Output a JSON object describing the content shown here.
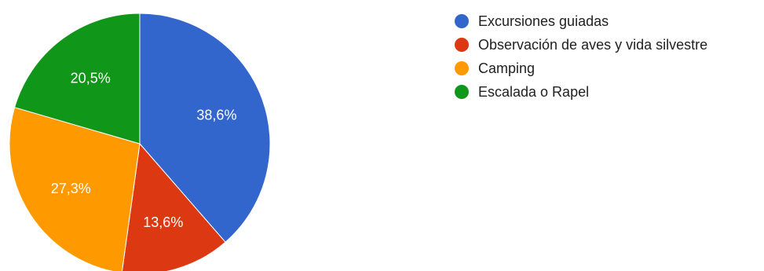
{
  "chart_data": {
    "type": "pie",
    "start_angle_deg": 90,
    "direction": "clockwise",
    "legend_position": "right",
    "slices": [
      {
        "label": "Excursiones guiadas",
        "value": 38.6,
        "value_label": "38,6%",
        "color": "#3366cc"
      },
      {
        "label": "Observación de aves y vida silvestre",
        "value": 13.6,
        "value_label": "13,6%",
        "color": "#dc3912"
      },
      {
        "label": "Camping",
        "value": 27.3,
        "value_label": "27,3%",
        "color": "#ff9900"
      },
      {
        "label": "Escalada o Rapel",
        "value": 20.5,
        "value_label": "20,5%",
        "color": "#109618"
      }
    ]
  },
  "legend": {
    "items": [
      {
        "label": "Excursiones guiadas",
        "color": "#3366cc"
      },
      {
        "label": "Observación de aves y vida silvestre",
        "color": "#dc3912"
      },
      {
        "label": "Camping",
        "color": "#ff9900"
      },
      {
        "label": "Escalada o Rapel",
        "color": "#109618"
      }
    ]
  }
}
